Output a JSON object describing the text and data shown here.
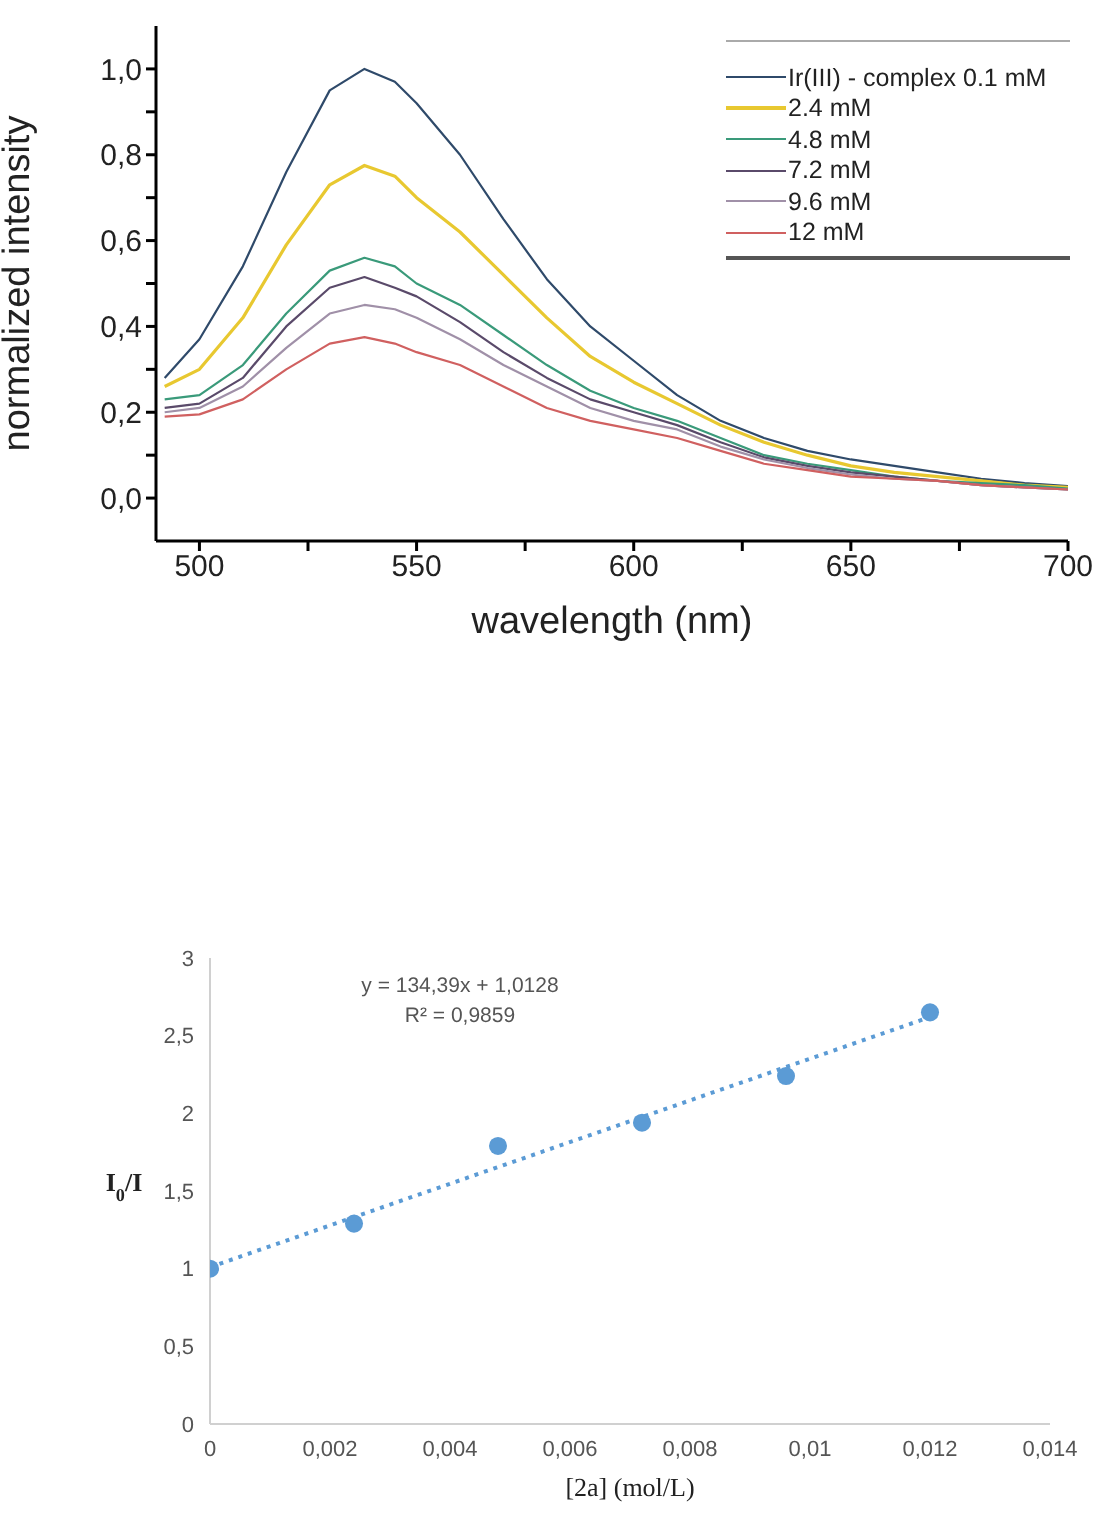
{
  "chart_data": [
    {
      "type": "line",
      "xlabel": "wavelength (nm)",
      "ylabel": "normalized intensity",
      "x": [
        492,
        500,
        510,
        520,
        530,
        538,
        545,
        550,
        560,
        570,
        580,
        590,
        600,
        610,
        620,
        630,
        640,
        650,
        660,
        670,
        680,
        690,
        700
      ],
      "series": [
        {
          "name": "Ir(III) - complex 0.1 mM",
          "color": "#2f4a6a",
          "values": [
            0.28,
            0.37,
            0.54,
            0.76,
            0.95,
            1.0,
            0.97,
            0.92,
            0.8,
            0.65,
            0.51,
            0.4,
            0.32,
            0.24,
            0.18,
            0.14,
            0.11,
            0.09,
            0.075,
            0.06,
            0.045,
            0.035,
            0.028
          ]
        },
        {
          "name": "2.4 mM",
          "color": "#e8c830",
          "values": [
            0.26,
            0.3,
            0.42,
            0.59,
            0.73,
            0.775,
            0.75,
            0.7,
            0.62,
            0.52,
            0.42,
            0.33,
            0.27,
            0.22,
            0.17,
            0.13,
            0.1,
            0.075,
            0.06,
            0.05,
            0.04,
            0.03,
            0.025
          ]
        },
        {
          "name": "4.8 mM",
          "color": "#3a9a7a",
          "values": [
            0.23,
            0.24,
            0.31,
            0.43,
            0.53,
            0.56,
            0.54,
            0.5,
            0.45,
            0.38,
            0.31,
            0.25,
            0.21,
            0.18,
            0.14,
            0.1,
            0.08,
            0.065,
            0.05,
            0.04,
            0.035,
            0.03,
            0.022
          ]
        },
        {
          "name": "7.2 mM",
          "color": "#5a4a6a",
          "values": [
            0.21,
            0.22,
            0.28,
            0.4,
            0.49,
            0.515,
            0.49,
            0.47,
            0.41,
            0.34,
            0.28,
            0.23,
            0.2,
            0.17,
            0.13,
            0.095,
            0.075,
            0.06,
            0.05,
            0.04,
            0.03,
            0.025,
            0.02
          ]
        },
        {
          "name": "9.6 mM",
          "color": "#a090a8",
          "values": [
            0.2,
            0.21,
            0.26,
            0.35,
            0.43,
            0.45,
            0.44,
            0.42,
            0.37,
            0.31,
            0.26,
            0.21,
            0.18,
            0.16,
            0.12,
            0.09,
            0.07,
            0.055,
            0.045,
            0.04,
            0.03,
            0.025,
            0.02
          ]
        },
        {
          "name": "12 mM",
          "color": "#d06060",
          "values": [
            0.19,
            0.195,
            0.23,
            0.3,
            0.36,
            0.375,
            0.36,
            0.34,
            0.31,
            0.26,
            0.21,
            0.18,
            0.16,
            0.14,
            0.11,
            0.08,
            0.065,
            0.05,
            0.045,
            0.04,
            0.03,
            0.025,
            0.02
          ]
        }
      ],
      "xlim": [
        490,
        700
      ],
      "xticks": [
        500,
        {
          "value": 525,
          "label": null
        },
        550,
        {
          "value": 575,
          "label": null
        },
        600,
        {
          "value": 625,
          "label": null
        },
        650,
        {
          "value": 675,
          "label": null
        },
        700
      ],
      "ylim": [
        -0.1,
        1.1
      ],
      "yticks": [
        {
          "value": 0,
          "label": "0,0"
        },
        {
          "value": 0.1,
          "label": null
        },
        {
          "value": 0.2,
          "label": "0,2"
        },
        {
          "value": 0.3,
          "label": null
        },
        {
          "value": 0.4,
          "label": "0,4"
        },
        {
          "value": 0.5,
          "label": null
        },
        {
          "value": 0.6,
          "label": "0,6"
        },
        {
          "value": 0.7,
          "label": null
        },
        {
          "value": 0.8,
          "label": "0,8"
        },
        {
          "value": 0.9,
          "label": null
        },
        {
          "value": 1.0,
          "label": "1,0"
        }
      ],
      "grid": false,
      "legend": "top right"
    },
    {
      "type": "scatter",
      "xlabel": "[2a] (mol/L)",
      "ylabel": "I$_{0}$/I",
      "annotations": [
        "y = 134,39x + 1,0128",
        "R² = 0,9859"
      ],
      "series": [
        {
          "type": "scatter",
          "color": "#5b9bd5",
          "x": [
            0,
            0.0024,
            0.0048,
            0.0072,
            0.0096,
            0.012
          ],
          "values": [
            1.0,
            1.29,
            1.79,
            1.94,
            2.24,
            2.65
          ],
          "marker": "circle"
        },
        {
          "type": "line",
          "color": "#5b9bd5",
          "x": [
            0,
            0.012
          ],
          "values": [
            1.01,
            2.62
          ],
          "line_style": "dotted"
        }
      ],
      "xlim": [
        0,
        0.014
      ],
      "xticks": [
        0,
        {
          "value": 0.002,
          "label": "0,002"
        },
        {
          "value": 0.004,
          "label": "0,004"
        },
        {
          "value": 0.006,
          "label": "0,006"
        },
        {
          "value": 0.008,
          "label": "0,008"
        },
        {
          "value": 0.01,
          "label": "0,01"
        },
        {
          "value": 0.012,
          "label": "0,012"
        },
        {
          "value": 0.014,
          "label": "0,014"
        }
      ],
      "ylim": [
        0,
        3
      ],
      "yticks": [
        0,
        {
          "value": 0.5,
          "label": "0,5"
        },
        1,
        {
          "value": 1.5,
          "label": "1,5"
        },
        2,
        {
          "value": 2.5,
          "label": "2,5"
        },
        3
      ],
      "grid": false
    }
  ]
}
